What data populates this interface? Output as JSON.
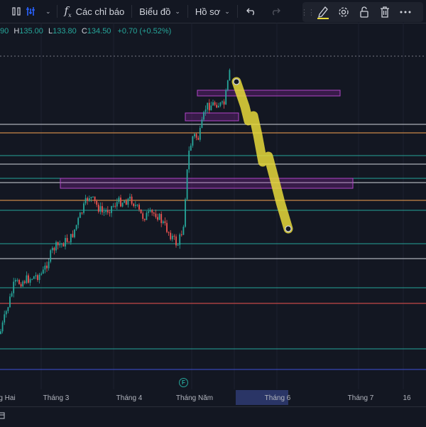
{
  "toolbar": {
    "indicators_label": "Các chỉ báo",
    "chart_menu_label": "Biểu đồ",
    "profile_label": "Hồ sơ"
  },
  "ohlc": {
    "open_partial": "90",
    "high_key": "H",
    "high": "135.00",
    "low_key": "L",
    "low": "133.80",
    "close_key": "C",
    "close": "134.50",
    "change": "+0.70 (+0.52%)"
  },
  "time_axis": {
    "labels": [
      "g Hai",
      "Tháng 3",
      "Tháng 4",
      "Tháng Năm",
      "Tháng 6",
      "Tháng 7",
      "16"
    ]
  },
  "earnings_marker": "F",
  "colors": {
    "background": "#131722",
    "up": "#26a69a",
    "down": "#ef5350",
    "highlighter": "#e8d93a",
    "zone": "#9c27b0"
  },
  "chart_data": {
    "type": "candlestick",
    "note_levels": "horizontal support/resistance lines, purple zones and yellow projected path drawn on chart",
    "price_direction": "uptrend from Feb to May, projected decline after"
  }
}
